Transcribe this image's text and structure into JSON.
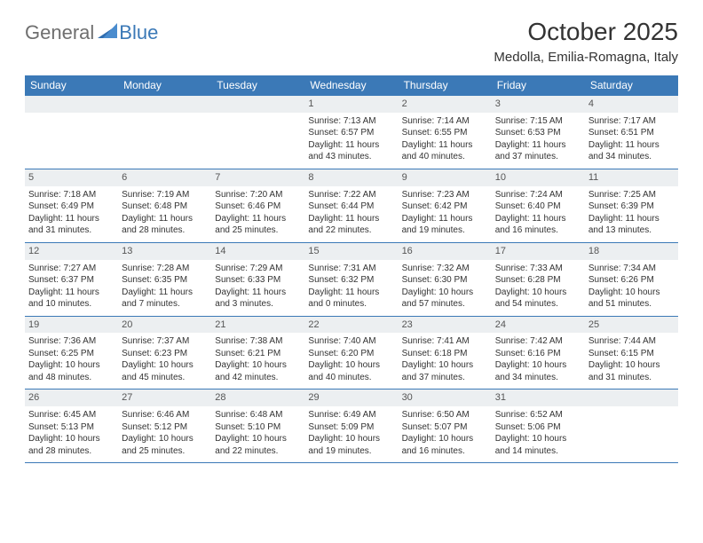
{
  "logo": {
    "general": "General",
    "blue": "Blue"
  },
  "header": {
    "title": "October 2025",
    "location": "Medolla, Emilia-Romagna, Italy"
  },
  "colors": {
    "header_bg": "#3b79b7",
    "header_text": "#ffffff",
    "daynum_bg": "#eceff1",
    "border": "#3b79b7",
    "logo_gray": "#6f6f6f",
    "logo_blue": "#3b79b7"
  },
  "weekdays": [
    "Sunday",
    "Monday",
    "Tuesday",
    "Wednesday",
    "Thursday",
    "Friday",
    "Saturday"
  ],
  "blank_leading": 3,
  "days": [
    {
      "n": "1",
      "sunrise": "7:13 AM",
      "sunset": "6:57 PM",
      "daylight": "11 hours and 43 minutes."
    },
    {
      "n": "2",
      "sunrise": "7:14 AM",
      "sunset": "6:55 PM",
      "daylight": "11 hours and 40 minutes."
    },
    {
      "n": "3",
      "sunrise": "7:15 AM",
      "sunset": "6:53 PM",
      "daylight": "11 hours and 37 minutes."
    },
    {
      "n": "4",
      "sunrise": "7:17 AM",
      "sunset": "6:51 PM",
      "daylight": "11 hours and 34 minutes."
    },
    {
      "n": "5",
      "sunrise": "7:18 AM",
      "sunset": "6:49 PM",
      "daylight": "11 hours and 31 minutes."
    },
    {
      "n": "6",
      "sunrise": "7:19 AM",
      "sunset": "6:48 PM",
      "daylight": "11 hours and 28 minutes."
    },
    {
      "n": "7",
      "sunrise": "7:20 AM",
      "sunset": "6:46 PM",
      "daylight": "11 hours and 25 minutes."
    },
    {
      "n": "8",
      "sunrise": "7:22 AM",
      "sunset": "6:44 PM",
      "daylight": "11 hours and 22 minutes."
    },
    {
      "n": "9",
      "sunrise": "7:23 AM",
      "sunset": "6:42 PM",
      "daylight": "11 hours and 19 minutes."
    },
    {
      "n": "10",
      "sunrise": "7:24 AM",
      "sunset": "6:40 PM",
      "daylight": "11 hours and 16 minutes."
    },
    {
      "n": "11",
      "sunrise": "7:25 AM",
      "sunset": "6:39 PM",
      "daylight": "11 hours and 13 minutes."
    },
    {
      "n": "12",
      "sunrise": "7:27 AM",
      "sunset": "6:37 PM",
      "daylight": "11 hours and 10 minutes."
    },
    {
      "n": "13",
      "sunrise": "7:28 AM",
      "sunset": "6:35 PM",
      "daylight": "11 hours and 7 minutes."
    },
    {
      "n": "14",
      "sunrise": "7:29 AM",
      "sunset": "6:33 PM",
      "daylight": "11 hours and 3 minutes."
    },
    {
      "n": "15",
      "sunrise": "7:31 AM",
      "sunset": "6:32 PM",
      "daylight": "11 hours and 0 minutes."
    },
    {
      "n": "16",
      "sunrise": "7:32 AM",
      "sunset": "6:30 PM",
      "daylight": "10 hours and 57 minutes."
    },
    {
      "n": "17",
      "sunrise": "7:33 AM",
      "sunset": "6:28 PM",
      "daylight": "10 hours and 54 minutes."
    },
    {
      "n": "18",
      "sunrise": "7:34 AM",
      "sunset": "6:26 PM",
      "daylight": "10 hours and 51 minutes."
    },
    {
      "n": "19",
      "sunrise": "7:36 AM",
      "sunset": "6:25 PM",
      "daylight": "10 hours and 48 minutes."
    },
    {
      "n": "20",
      "sunrise": "7:37 AM",
      "sunset": "6:23 PM",
      "daylight": "10 hours and 45 minutes."
    },
    {
      "n": "21",
      "sunrise": "7:38 AM",
      "sunset": "6:21 PM",
      "daylight": "10 hours and 42 minutes."
    },
    {
      "n": "22",
      "sunrise": "7:40 AM",
      "sunset": "6:20 PM",
      "daylight": "10 hours and 40 minutes."
    },
    {
      "n": "23",
      "sunrise": "7:41 AM",
      "sunset": "6:18 PM",
      "daylight": "10 hours and 37 minutes."
    },
    {
      "n": "24",
      "sunrise": "7:42 AM",
      "sunset": "6:16 PM",
      "daylight": "10 hours and 34 minutes."
    },
    {
      "n": "25",
      "sunrise": "7:44 AM",
      "sunset": "6:15 PM",
      "daylight": "10 hours and 31 minutes."
    },
    {
      "n": "26",
      "sunrise": "6:45 AM",
      "sunset": "5:13 PM",
      "daylight": "10 hours and 28 minutes."
    },
    {
      "n": "27",
      "sunrise": "6:46 AM",
      "sunset": "5:12 PM",
      "daylight": "10 hours and 25 minutes."
    },
    {
      "n": "28",
      "sunrise": "6:48 AM",
      "sunset": "5:10 PM",
      "daylight": "10 hours and 22 minutes."
    },
    {
      "n": "29",
      "sunrise": "6:49 AM",
      "sunset": "5:09 PM",
      "daylight": "10 hours and 19 minutes."
    },
    {
      "n": "30",
      "sunrise": "6:50 AM",
      "sunset": "5:07 PM",
      "daylight": "10 hours and 16 minutes."
    },
    {
      "n": "31",
      "sunrise": "6:52 AM",
      "sunset": "5:06 PM",
      "daylight": "10 hours and 14 minutes."
    }
  ],
  "labels": {
    "sunrise": "Sunrise:",
    "sunset": "Sunset:",
    "daylight": "Daylight:"
  }
}
